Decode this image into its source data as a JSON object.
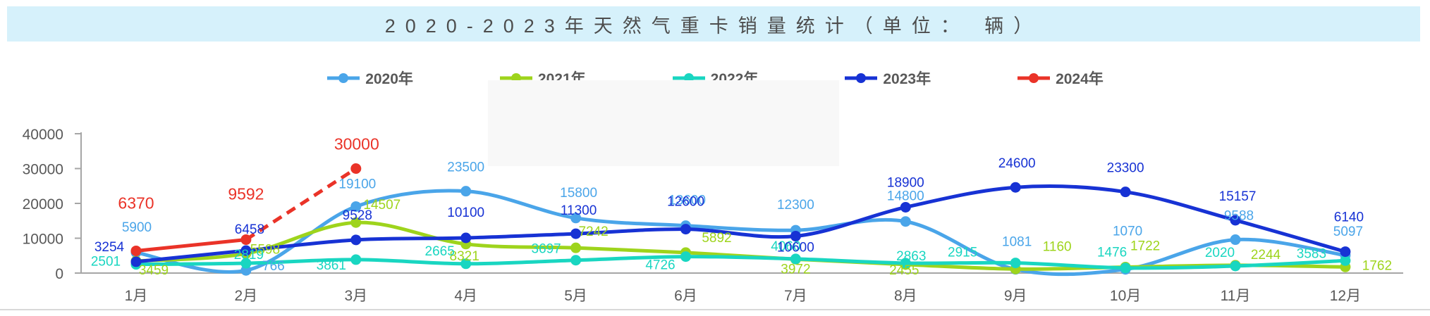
{
  "header": {
    "title": "2020-2023年天然气重卡销量统计（单位： 辆）",
    "background": "#D6F1FB",
    "text_color": "#4D4D4D"
  },
  "colors": {
    "axis_line": "#A6A6A6",
    "axis_text": "#595959",
    "legend_text": "#595959",
    "watermark_patch": "#F8F8F8",
    "bottom_divider": "#CCCCCC"
  },
  "chart_data": {
    "type": "line",
    "title": "2020-2023年天然气重卡销量统计（单位： 辆）",
    "xlabel": "",
    "ylabel": "",
    "ylim": [
      0,
      40000
    ],
    "yticks": [
      0,
      10000,
      20000,
      30000,
      40000
    ],
    "grid": false,
    "legend_position": "top",
    "categories": [
      "1月",
      "2月",
      "3月",
      "4月",
      "5月",
      "6月",
      "7月",
      "8月",
      "9月",
      "10月",
      "11月",
      "12月"
    ],
    "series": [
      {
        "name": "2020年",
        "color": "#4AA5E9",
        "dashed_from": null,
        "values": [
          5900,
          766,
          19100,
          23500,
          15800,
          13600,
          12300,
          14800,
          1081,
          1070,
          9588,
          5097
        ]
      },
      {
        "name": "2021年",
        "color": "#9ED41C",
        "dashed_from": null,
        "values": [
          3459,
          5598,
          14507,
          8321,
          7242,
          5892,
          3972,
          2455,
          1160,
          1722,
          2244,
          1762
        ]
      },
      {
        "name": "2022年",
        "color": "#19D6C1",
        "dashed_from": null,
        "values": [
          2501,
          2819,
          3861,
          2665,
          3697,
          4726,
          4060,
          2863,
          2915,
          1476,
          2020,
          3583
        ]
      },
      {
        "name": "2023年",
        "color": "#1732D4",
        "dashed_from": null,
        "values": [
          3254,
          6458,
          9528,
          10100,
          11300,
          12600,
          10600,
          18900,
          24600,
          23300,
          15157,
          6140
        ]
      },
      {
        "name": "2024年",
        "color": "#EA3328",
        "dashed_from": 1,
        "values": [
          6370,
          9592,
          30000,
          null,
          null,
          null,
          null,
          null,
          null,
          null,
          null,
          null
        ]
      }
    ]
  }
}
